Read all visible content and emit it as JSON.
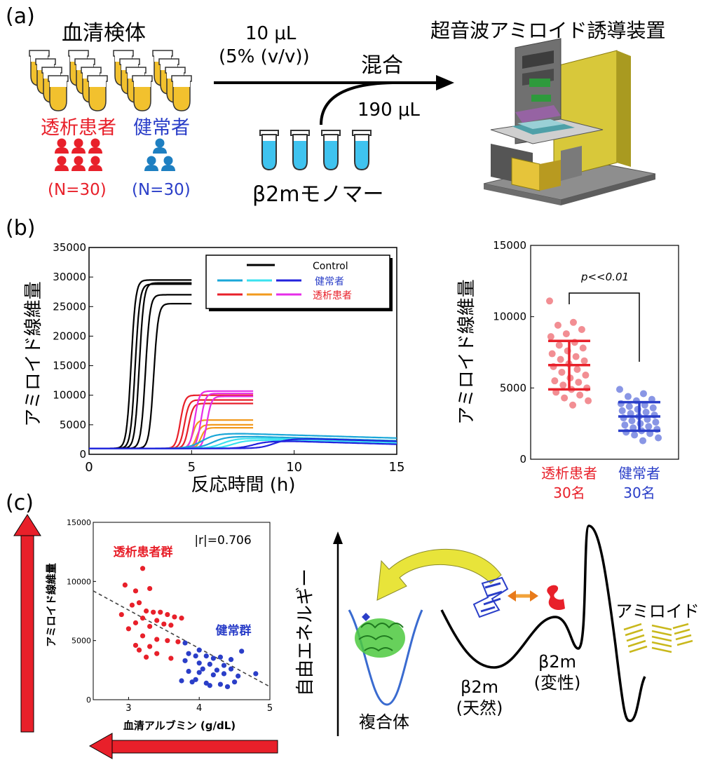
{
  "panel_a": {
    "label": "(a)",
    "serum_title": "血清検体",
    "volume_line1": "10 μL",
    "volume_line2": "(5% (v/v))",
    "mix_label": "混合",
    "monomer_volume": "190 μL",
    "device_title": "超音波アミロイド誘導装置",
    "patient_label": "透析患者",
    "healthy_label": "健常者",
    "patient_n": "(N=30)",
    "healthy_n": "(N=30)",
    "monomer_label": "β2mモノマー",
    "colors": {
      "patient": "#e8202a",
      "healthy": "#2a3ec8",
      "person_healthy": "#1e7fc1",
      "tube_liquid": "#f2c12e",
      "monomer_liquid": "#3fc3ef"
    }
  },
  "panel_b": {
    "label": "(b)",
    "left_chart": {
      "ylabel": "アミロイド線維量",
      "xlabel": "反応時間 (h)",
      "legend": [
        {
          "name": "Control",
          "color": "#000000"
        },
        {
          "name": "健常者",
          "color": "#2a3ec8",
          "line_colors": [
            "#1aa7d8",
            "#3ae2ef",
            "#2222dd"
          ]
        },
        {
          "name": "透析患者",
          "color": "#e8202a",
          "line_colors": [
            "#e8202a",
            "#f29a1e",
            "#e62de8"
          ]
        }
      ]
    },
    "right_chart": {
      "ylabel": "アミロイド線維量",
      "significance": "p<<0.01",
      "group1_line1": "透析患者",
      "group1_line2": "30名",
      "group2_line1": "健常者",
      "group2_line2": "30名"
    }
  },
  "panel_c": {
    "label": "(c)",
    "scatter": {
      "ylabel": "アミロイド線維量",
      "xlabel": "血清アルブミン (g/dL)",
      "r_label": "|r|=0.706",
      "patient_group": "透析患者群",
      "healthy_group": "健常群"
    },
    "energy": {
      "ylabel": "自由エネルギー",
      "complex_label": "複合体",
      "native_line1": "β2m",
      "native_line2": "(天然)",
      "denatured_line1": "β2m",
      "denatured_line2": "(変性)",
      "amyloid_label": "アミロイド"
    }
  },
  "chart_data": [
    {
      "type": "line",
      "xlabel": "反応時間 (h)",
      "ylabel": "アミロイド線維量",
      "xlim": [
        0,
        15
      ],
      "ylim": [
        0,
        35000
      ],
      "xticks": [
        0,
        5,
        10,
        15
      ],
      "yticks": [
        0,
        5000,
        10000,
        15000,
        20000,
        25000,
        30000,
        35000
      ],
      "series": [
        {
          "name": "Control",
          "color": "#000000",
          "x_end": 5,
          "curves": [
            {
              "onset": 1.8,
              "plateau": 29500
            },
            {
              "onset": 2.0,
              "plateau": 28800
            },
            {
              "onset": 2.2,
              "plateau": 29000
            },
            {
              "onset": 2.5,
              "plateau": 27000
            },
            {
              "onset": 2.9,
              "plateau": 25500
            }
          ]
        },
        {
          "name": "透析患者",
          "color": "#e8202a",
          "x_end": 8,
          "curves": [
            {
              "onset": 4.2,
              "plateau": 10000,
              "color": "#e8202a"
            },
            {
              "onset": 4.4,
              "plateau": 9200,
              "color": "#e8202a"
            },
            {
              "onset": 4.6,
              "plateau": 8600,
              "color": "#e8202a"
            },
            {
              "onset": 4.8,
              "plateau": 5800,
              "color": "#f29a1e"
            },
            {
              "onset": 5.0,
              "plateau": 5000,
              "color": "#f29a1e"
            },
            {
              "onset": 5.2,
              "plateau": 4500,
              "color": "#f29a1e"
            },
            {
              "onset": 4.9,
              "plateau": 10700,
              "color": "#e62de8"
            },
            {
              "onset": 5.2,
              "plateau": 10300,
              "color": "#e62de8"
            },
            {
              "onset": 5.5,
              "plateau": 9800,
              "color": "#e62de8"
            }
          ]
        },
        {
          "name": "健常者",
          "color": "#2a3ec8",
          "x_end": 15,
          "curves": [
            {
              "onset": 5.5,
              "plateau": 3500,
              "color": "#1aa7d8"
            },
            {
              "onset": 6.0,
              "plateau": 3000,
              "color": "#1aa7d8"
            },
            {
              "onset": 6.5,
              "plateau": 2700,
              "color": "#3ae2ef"
            },
            {
              "onset": 7.0,
              "plateau": 2400,
              "color": "#3ae2ef"
            },
            {
              "onset": 8.0,
              "plateau": 2200,
              "color": "#2222dd"
            },
            {
              "onset": 9.0,
              "plateau": 2600,
              "color": "#2222dd"
            }
          ]
        }
      ]
    },
    {
      "type": "scatter",
      "ylabel": "アミロイド線維量",
      "ylim": [
        0,
        15000
      ],
      "yticks": [
        0,
        5000,
        10000,
        15000
      ],
      "categories": [
        "透析患者 30名",
        "健常者 30名"
      ],
      "series": [
        {
          "name": "透析患者",
          "color": "#e8202a",
          "mean": 6600,
          "sd": 1700,
          "values": [
            11100,
            9600,
            9400,
            9100,
            8800,
            8600,
            8200,
            8000,
            7800,
            7600,
            7400,
            7200,
            7000,
            6900,
            6700,
            6500,
            6300,
            6100,
            5900,
            5700,
            5500,
            5400,
            5200,
            5000,
            4900,
            4700,
            4500,
            4300,
            4100,
            3800
          ]
        },
        {
          "name": "健常者",
          "color": "#2a3ec8",
          "mean": 3000,
          "sd": 1000,
          "values": [
            4900,
            4600,
            4400,
            4200,
            4100,
            3900,
            3800,
            3700,
            3600,
            3500,
            3400,
            3300,
            3200,
            3100,
            3000,
            2900,
            2800,
            2700,
            2600,
            2500,
            2400,
            2300,
            2200,
            2100,
            2000,
            1900,
            1800,
            1700,
            1500,
            1300
          ]
        }
      ]
    },
    {
      "type": "scatter",
      "xlabel": "血清アルブミン (g/dL)",
      "ylabel": "アミロイド線維量",
      "xlim": [
        2.5,
        5
      ],
      "ylim": [
        0,
        15000
      ],
      "xticks": [
        3,
        4,
        5
      ],
      "yticks": [
        0,
        5000,
        10000,
        15000
      ],
      "annotation": "|r|=0.706",
      "trendline": {
        "x": [
          2.5,
          5
        ],
        "y": [
          9200,
          1100
        ]
      },
      "series": [
        {
          "name": "透析患者群",
          "color": "#e8202a",
          "points": [
            [
              2.95,
              9700
            ],
            [
              3.2,
              11100
            ],
            [
              3.1,
              9200
            ],
            [
              3.3,
              9400
            ],
            [
              2.9,
              7200
            ],
            [
              3.05,
              8000
            ],
            [
              3.15,
              8200
            ],
            [
              3.25,
              7500
            ],
            [
              3.35,
              7400
            ],
            [
              3.45,
              7400
            ],
            [
              3.55,
              7200
            ],
            [
              3.65,
              7000
            ],
            [
              3.75,
              6900
            ],
            [
              3.2,
              6900
            ],
            [
              3.4,
              6700
            ],
            [
              3.5,
              6400
            ],
            [
              3.1,
              6500
            ],
            [
              3.3,
              6200
            ],
            [
              3.0,
              6000
            ],
            [
              3.6,
              6300
            ],
            [
              3.2,
              5400
            ],
            [
              3.4,
              5100
            ],
            [
              3.55,
              5000
            ],
            [
              3.7,
              4900
            ],
            [
              3.1,
              4600
            ],
            [
              3.3,
              4500
            ],
            [
              3.15,
              4200
            ],
            [
              3.4,
              3900
            ],
            [
              3.25,
              3600
            ],
            [
              3.6,
              3500
            ]
          ]
        },
        {
          "name": "健常群",
          "color": "#2a3ec8",
          "points": [
            [
              3.8,
              4800
            ],
            [
              3.85,
              3900
            ],
            [
              3.95,
              3700
            ],
            [
              4.0,
              4200
            ],
            [
              4.1,
              3700
            ],
            [
              4.2,
              3500
            ],
            [
              4.3,
              3600
            ],
            [
              4.45,
              3400
            ],
            [
              3.8,
              3300
            ],
            [
              4.0,
              3100
            ],
            [
              4.15,
              3000
            ],
            [
              4.35,
              2900
            ],
            [
              4.6,
              4100
            ],
            [
              4.05,
              2600
            ],
            [
              4.25,
              2500
            ],
            [
              4.45,
              2600
            ],
            [
              3.85,
              2400
            ],
            [
              4.0,
              2300
            ],
            [
              4.2,
              2100
            ],
            [
              4.35,
              2200
            ],
            [
              4.55,
              2000
            ],
            [
              4.8,
              2200
            ],
            [
              3.75,
              1600
            ],
            [
              3.9,
              1500
            ],
            [
              4.1,
              1400
            ],
            [
              4.3,
              1300
            ],
            [
              4.5,
              1500
            ],
            [
              4.15,
              1200
            ],
            [
              3.95,
              1700
            ],
            [
              4.4,
              1100
            ]
          ]
        }
      ]
    }
  ]
}
